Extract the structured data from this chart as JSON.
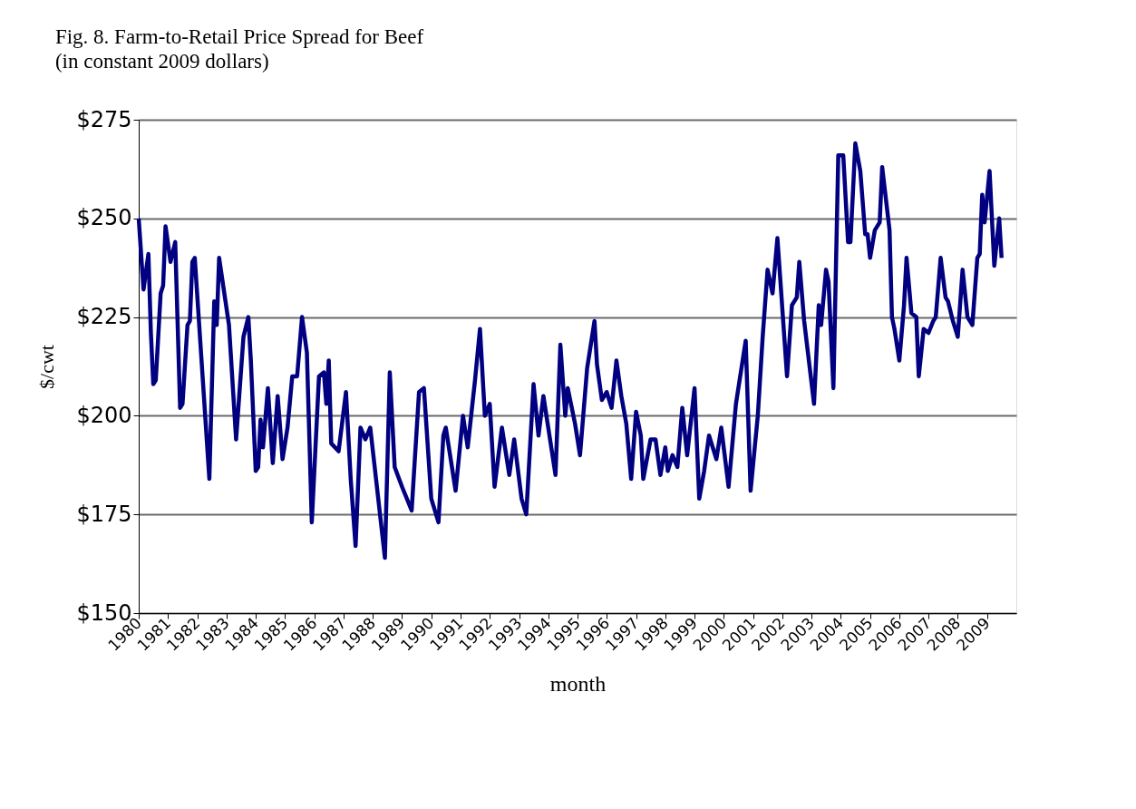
{
  "chart_data": {
    "type": "line",
    "title": "Fig. 8. Farm-to-Retail Price Spread for Beef",
    "subtitle": "(in constant 2009 dollars)",
    "xlabel": "month",
    "ylabel": "$/cwt",
    "x": [
      "1980-01",
      "1980-03",
      "1980-05",
      "1980-06",
      "1980-07",
      "1980-08",
      "1980-10",
      "1980-11",
      "1980-12",
      "1981-02",
      "1981-04",
      "1981-06",
      "1981-07",
      "1981-09",
      "1981-10",
      "1981-11",
      "1981-12",
      "1982-06",
      "1982-08",
      "1982-09",
      "1982-10",
      "1983-02",
      "1983-05",
      "1983-08",
      "1983-10",
      "1983-11",
      "1984-01",
      "1984-02",
      "1984-03",
      "1984-04",
      "1984-06",
      "1984-08",
      "1984-10",
      "1984-12",
      "1985-02",
      "1985-04",
      "1985-06",
      "1985-08",
      "1985-10",
      "1985-12",
      "1986-03",
      "1986-05",
      "1986-06",
      "1986-07",
      "1986-08",
      "1986-11",
      "1987-02",
      "1987-04",
      "1987-06",
      "1987-08",
      "1987-10",
      "1987-12",
      "1988-06",
      "1988-08",
      "1988-10",
      "1989-01",
      "1989-05",
      "1989-08",
      "1989-10",
      "1990-01",
      "1990-04",
      "1990-06",
      "1990-07",
      "1990-11",
      "1991-02",
      "1991-04",
      "1991-07",
      "1991-09",
      "1991-11",
      "1992-01",
      "1992-03",
      "1992-06",
      "1992-09",
      "1992-11",
      "1993-02",
      "1993-04",
      "1993-07",
      "1993-09",
      "1993-11",
      "1994-04",
      "1994-06",
      "1994-08",
      "1994-09",
      "1994-12",
      "1995-02",
      "1995-05",
      "1995-08",
      "1995-09",
      "1995-11",
      "1996-01",
      "1996-03",
      "1996-05",
      "1996-07",
      "1996-09",
      "1996-11",
      "1997-01",
      "1997-03",
      "1997-04",
      "1997-07",
      "1997-09",
      "1997-11",
      "1998-01",
      "1998-02",
      "1998-04",
      "1998-06",
      "1998-08",
      "1998-10",
      "1999-01",
      "1999-03",
      "1999-05",
      "1999-07",
      "1999-10",
      "1999-12",
      "2000-03",
      "2000-06",
      "2000-10",
      "2000-12",
      "2001-03",
      "2001-05",
      "2001-07",
      "2001-09",
      "2001-11",
      "2002-03",
      "2002-05",
      "2002-07",
      "2002-08",
      "2002-10",
      "2003-02",
      "2003-04",
      "2003-05",
      "2003-07",
      "2003-08",
      "2003-10",
      "2003-12",
      "2004-02",
      "2004-04",
      "2004-05",
      "2004-07",
      "2004-09",
      "2004-11",
      "2004-12",
      "2005-01",
      "2005-03",
      "2005-05",
      "2005-06",
      "2005-09",
      "2005-10",
      "2005-11",
      "2006-01",
      "2006-03",
      "2006-04",
      "2006-06",
      "2006-08",
      "2006-09",
      "2006-11",
      "2007-01",
      "2007-03",
      "2007-04",
      "2007-06",
      "2007-08",
      "2007-09",
      "2007-11",
      "2008-01",
      "2008-03",
      "2008-05",
      "2008-07",
      "2008-09",
      "2008-10",
      "2008-11",
      "2008-12",
      "2009-02",
      "2009-04",
      "2009-06",
      "2009-07"
    ],
    "series": [
      {
        "color": "#000080",
        "values": [
          250,
          232,
          241,
          221,
          208,
          209,
          231,
          233,
          248,
          239,
          244,
          202,
          203,
          223,
          224,
          239,
          240,
          184,
          229,
          223,
          240,
          223,
          194,
          220,
          225,
          214,
          186,
          187,
          199,
          192,
          207,
          188,
          205,
          189,
          197,
          210,
          210,
          225,
          216,
          173,
          210,
          211,
          203,
          214,
          193,
          191,
          206,
          184,
          167,
          197,
          194,
          197,
          164,
          211,
          187,
          182,
          176,
          206,
          207,
          179,
          173,
          195,
          197,
          181,
          200,
          192,
          209,
          222,
          200,
          203,
          182,
          197,
          185,
          194,
          179,
          175,
          208,
          195,
          205,
          185,
          218,
          200,
          207,
          198,
          190,
          212,
          224,
          213,
          204,
          206,
          202,
          214,
          205,
          198,
          184,
          201,
          195,
          184,
          194,
          194,
          185,
          192,
          186,
          190,
          187,
          202,
          190,
          207,
          179,
          186,
          195,
          189,
          197,
          182,
          203,
          219,
          181,
          200,
          220,
          237,
          231,
          245,
          210,
          228,
          230,
          239,
          224,
          203,
          228,
          223,
          237,
          234,
          207,
          266,
          266,
          244,
          244,
          269,
          262,
          246,
          246,
          240,
          247,
          249,
          263,
          247,
          225,
          222,
          214,
          228,
          240,
          226,
          225,
          210,
          222,
          221,
          224,
          225,
          240,
          230,
          229,
          224,
          220,
          237,
          225,
          223,
          240,
          241,
          256,
          249,
          262,
          238,
          250,
          240
        ]
      }
    ],
    "xlim": [
      "1980-01",
      "2010-01"
    ],
    "xticks": [
      "1980",
      "1981",
      "1982",
      "1983",
      "1984",
      "1985",
      "1986",
      "1987",
      "1988",
      "1989",
      "1990",
      "1991",
      "1992",
      "1993",
      "1994",
      "1995",
      "1996",
      "1997",
      "1998",
      "1999",
      "2000",
      "2001",
      "2002",
      "2003",
      "2004",
      "2005",
      "2006",
      "2007",
      "2008",
      "2009"
    ],
    "ylim": [
      150,
      275
    ],
    "yticks": [
      {
        "value": 150,
        "label": "$150"
      },
      {
        "value": 175,
        "label": "$175"
      },
      {
        "value": 200,
        "label": "$200"
      },
      {
        "value": 225,
        "label": "$225"
      },
      {
        "value": 250,
        "label": "$250"
      },
      {
        "value": 275,
        "label": "$275"
      }
    ],
    "grid": "y",
    "marker": "none",
    "line_style": "solid"
  }
}
